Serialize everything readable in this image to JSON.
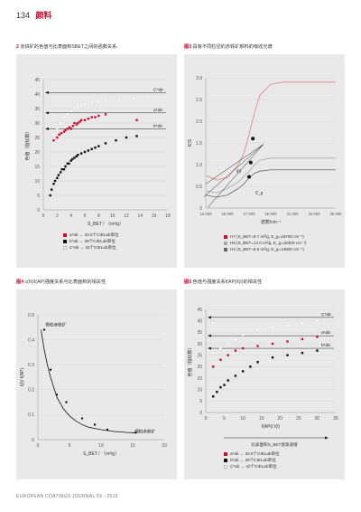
{
  "header": {
    "page_number": "134",
    "chapter": "颜料"
  },
  "captions": {
    "fig2": {
      "num": "2",
      "text": "赤铁矿的色值与比表面积SBET之间的函数关系."
    },
    "fig3": {
      "num": "图3",
      "text": "具有不同粒径的赤铁矿颜料的吸收光谱"
    },
    "fig4": {
      "num": "图4",
      "text": "c(II)/I(AP)强度关系与比表面积的相关性"
    },
    "fig5": {
      "num": "图5",
      "text": "色值与强度关系f(AP)/I(I)的相关性"
    }
  },
  "footer": "EUROPEAN COATINGS JOURNAL 03 - 2019",
  "chart_data": [
    {
      "id": "fig2",
      "type": "scatter",
      "ylabel": "色值（指标数）",
      "xlabel": "S_BET / （m²/g）",
      "xlim": [
        0,
        18
      ],
      "ylim": [
        0,
        45
      ],
      "xticks": [
        0,
        2,
        4,
        6,
        8,
        10,
        12,
        14,
        16,
        18
      ],
      "yticks": [
        0,
        5,
        10,
        15,
        20,
        25,
        30,
        35,
        40,
        45
      ],
      "arrow_labels": [
        {
          "text": "C*ab",
          "y": 40.5
        },
        {
          "text": "a*ab",
          "y": 33.5
        },
        {
          "text": "b*ab",
          "y": 28
        }
      ],
      "series": [
        {
          "name": "a*ab → 33.5个CIELab单位",
          "color": "#c8102e",
          "x": [
            1.5,
            2.0,
            2.3,
            2.6,
            3.0,
            3.2,
            3.5,
            3.8,
            4.0,
            4.3,
            4.5,
            4.8,
            5.0,
            5.3,
            5.5,
            6.0,
            6.5,
            7.0,
            7.5,
            8.0,
            9.0,
            13.5
          ],
          "y": [
            24,
            25,
            26,
            26.5,
            27,
            27.5,
            28,
            28.5,
            28,
            29,
            30,
            29.5,
            30,
            30.5,
            31,
            31,
            31.5,
            32,
            32,
            32.5,
            33,
            31
          ]
        },
        {
          "name": "b*ab → 28个CIELab单位",
          "color": "#111111",
          "x": [
            1.0,
            1.2,
            1.5,
            1.7,
            2.0,
            2.2,
            2.5,
            2.7,
            3.0,
            3.2,
            3.5,
            3.7,
            4.0,
            4.2,
            4.5,
            4.8,
            5.0,
            5.5,
            6.0,
            6.5,
            7.0,
            7.5,
            8.0,
            9.0,
            10.5,
            12.0,
            13.5
          ],
          "y": [
            5,
            7,
            9,
            10,
            11,
            12,
            13,
            14,
            14,
            15,
            16,
            16,
            17,
            17.5,
            18,
            18.5,
            19,
            19.5,
            20,
            20.5,
            21,
            21.5,
            22,
            23,
            24,
            25,
            25.5
          ]
        },
        {
          "name": "C*ab → 42个CIELab单位",
          "color": "#ffffff",
          "x": [
            1.5,
            2.0,
            2.5,
            3.0,
            3.5,
            4.0,
            4.5,
            5.0,
            5.5,
            6.0,
            7.0,
            8.0,
            9.0,
            11.0,
            13.0,
            15.0
          ],
          "y": [
            26,
            28,
            30,
            32,
            33,
            34,
            35,
            35.5,
            36,
            36.5,
            37,
            37.5,
            38,
            38,
            38.5,
            39
          ]
        }
      ],
      "legend": [
        {
          "label": "a*ab → 33.5个CIELab单位",
          "color": "#c8102e"
        },
        {
          "label": "b*ab → 28个CIELab单位",
          "color": "#111111"
        },
        {
          "label": "C*ab → 42个CIELab单位",
          "color": "#ffffff"
        }
      ]
    },
    {
      "id": "fig3",
      "type": "line",
      "ylabel": "K/S",
      "xlabel": "波数/cm⁻¹",
      "xlim": [
        13000,
        25000
      ],
      "ylim": [
        0,
        3.0
      ],
      "xticks": [
        13000,
        15000,
        17000,
        19000,
        21000,
        23000,
        25000
      ],
      "xtick_labels": [
        "13 000",
        "15 000",
        "17 000",
        "19 000",
        "21 000",
        "23 000",
        "25 000"
      ],
      "yticks": [
        0,
        0.5,
        1.0,
        1.5,
        2.0,
        2.5,
        3.0
      ],
      "ytick_labels": [
        "0",
        "0.5",
        "1.0",
        "1.5",
        "2.0",
        "2.5",
        "3.0"
      ],
      "annotations": [
        {
          "text": "I(I)",
          "x": 15800,
          "y": 0.82
        },
        {
          "text": "E_g",
          "x": 17600,
          "y": 0.32
        }
      ],
      "series": [
        {
          "name": "H7 (S_BET=9.7 m²/g, E_g=16700 cm⁻¹)",
          "color": "#e08080",
          "x": [
            13000,
            14000,
            15000,
            16000,
            16500,
            17000,
            17500,
            18000,
            19000,
            20000,
            21000,
            22000,
            23000,
            24000,
            25000
          ],
          "y": [
            0.75,
            0.65,
            0.7,
            1.0,
            1.25,
            1.7,
            2.2,
            2.6,
            2.85,
            2.9,
            2.9,
            2.9,
            2.9,
            2.9,
            2.9
          ]
        },
        {
          "name": "H5 (S_BET=14.0 m²/g, E_g=18400 cm⁻¹)",
          "color": "#a8a8a8",
          "x": [
            13000,
            14000,
            15000,
            16000,
            17000,
            17500,
            18000,
            19000,
            20000,
            21000,
            22000,
            23000,
            24000,
            25000
          ],
          "y": [
            0.4,
            0.35,
            0.45,
            0.6,
            0.85,
            1.0,
            1.1,
            1.15,
            1.15,
            1.15,
            1.15,
            1.15,
            1.15,
            1.15
          ]
        },
        {
          "name": "H2 (S_BET=6.6 m²/g, E_g=14900 cm⁻¹)",
          "color": "#666666",
          "x": [
            13000,
            14000,
            15000,
            16000,
            16500,
            17000,
            17500,
            18000,
            19000,
            20000,
            21000,
            22000,
            23000,
            24000,
            25000
          ],
          "y": [
            0.3,
            0.25,
            0.3,
            0.45,
            0.55,
            0.7,
            0.8,
            0.85,
            0.88,
            0.88,
            0.88,
            0.88,
            0.88,
            0.88,
            0.88
          ]
        }
      ],
      "markers": {
        "x": [
          17000,
          17150,
          17350
        ],
        "y": [
          0.72,
          1.05,
          1.6
        ]
      },
      "legend": [
        {
          "label": "H7 (S_BET=9.7 m²/g, E_g=16700 cm⁻¹)",
          "color": "#c8102e"
        },
        {
          "label": "H5 (S_BET=14.0 m²/g, E_g=18400 cm⁻¹)",
          "color": "#a8a8a8"
        },
        {
          "label": "H2 (S_BET=6.6 m²/g, E_g=14900 cm⁻¹)",
          "color": "#666666"
        }
      ]
    },
    {
      "id": "fig4",
      "type": "line",
      "ylabel": "I(I)/ I(AP)",
      "xlabel": "S_BET / （m²/g）",
      "xlim": [
        0,
        20
      ],
      "ylim": [
        0,
        0.5
      ],
      "xticks": [
        0,
        5,
        10,
        15,
        20
      ],
      "yticks": [
        0,
        0.1,
        0.2,
        0.3,
        0.4,
        0.5
      ],
      "ytick_labels": [
        "0",
        "0.1",
        "0.2",
        "0.3",
        "0.4",
        "0.5"
      ],
      "annotations": [
        {
          "text": "微粒赤铁矿",
          "x": 1.2,
          "y": 0.455
        },
        {
          "text": "细粒赤铁矿",
          "x": 15.3,
          "y": 0.028
        }
      ],
      "series": [
        {
          "name": "fit",
          "color": "#111111",
          "x": [
            0.5,
            1,
            1.5,
            2,
            3,
            4,
            5,
            6,
            7,
            8,
            9,
            10,
            12,
            14,
            15.5
          ],
          "y": [
            0.44,
            0.36,
            0.3,
            0.25,
            0.17,
            0.125,
            0.095,
            0.075,
            0.06,
            0.05,
            0.045,
            0.04,
            0.033,
            0.029,
            0.027
          ]
        }
      ],
      "points": {
        "x": [
          1.0,
          2.0,
          3.0,
          4.5,
          7.0,
          9.0,
          11.0,
          15.5
        ],
        "y": [
          0.44,
          0.28,
          0.18,
          0.15,
          0.085,
          0.06,
          0.04,
          0.028
        ]
      }
    },
    {
      "id": "fig5",
      "type": "scatter",
      "ylabel": "色值（指标数）",
      "xlabel": "f(AP)/ I(I)",
      "xlim": [
        0,
        35
      ],
      "ylim": [
        0,
        45
      ],
      "xticks": [
        0,
        5,
        10,
        15,
        20,
        25,
        30,
        35
      ],
      "yticks": [
        0,
        5,
        10,
        15,
        20,
        25,
        30,
        35,
        40,
        45
      ],
      "extra_label": "比表面积S_BET逐渐递增",
      "arrow_labels": [
        {
          "text": "C*ab",
          "y": 41.5
        },
        {
          "text": "a*ab",
          "y": 33.5
        },
        {
          "text": "b*ab",
          "y": 28
        }
      ],
      "series": [
        {
          "name": "a*ab → 33.5个CIELab单位",
          "color": "#c8102e",
          "x": [
            2,
            4,
            6,
            8,
            10,
            14,
            18,
            22,
            26,
            30
          ],
          "y": [
            20,
            23,
            25,
            27,
            28,
            29,
            30,
            31,
            32,
            33
          ]
        },
        {
          "name": "b*ab → 28个CIELab单位",
          "color": "#111111",
          "x": [
            2,
            3,
            4,
            5,
            6,
            8,
            10,
            12,
            14,
            18,
            22,
            26,
            30
          ],
          "y": [
            7,
            9,
            11,
            12,
            14,
            16,
            18,
            20,
            22,
            24,
            25,
            26,
            27
          ]
        },
        {
          "name": "C*ab → 42个CIELab单位",
          "color": "#ffffff",
          "x": [
            2,
            4,
            6,
            8,
            10,
            14,
            18,
            22,
            26,
            30
          ],
          "y": [
            26,
            28,
            30,
            32,
            34,
            36,
            37,
            38,
            39,
            40
          ]
        }
      ],
      "legend": [
        {
          "label": "a*ab → 33.5个CIELab单位",
          "color": "#c8102e"
        },
        {
          "label": "b*ab → 28个CIELab单位",
          "color": "#111111"
        },
        {
          "label": "C*ab → 42个CIELab单位",
          "color": "#ffffff"
        }
      ]
    }
  ]
}
